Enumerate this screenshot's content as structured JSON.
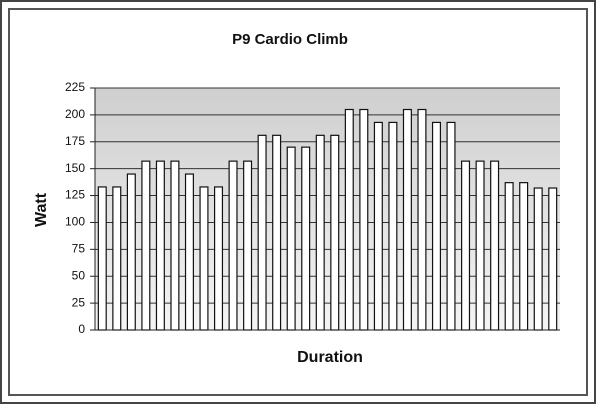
{
  "chart_data": {
    "type": "bar",
    "title": "P9 Cardio Climb",
    "x_label": "Duration",
    "y_label": "Watt",
    "categories": [
      null,
      null,
      null,
      null,
      null,
      null,
      null,
      null,
      null,
      null,
      null,
      null,
      null,
      null,
      null,
      null,
      null,
      null,
      null,
      null,
      null,
      null,
      null,
      null,
      null,
      null,
      null,
      null,
      null,
      null,
      null,
      null
    ],
    "values": [
      133,
      133,
      145,
      157,
      157,
      157,
      145,
      133,
      133,
      157,
      157,
      181,
      181,
      170,
      170,
      181,
      181,
      205,
      205,
      193,
      193,
      205,
      205,
      193,
      193,
      157,
      157,
      157,
      137,
      137,
      132,
      132
    ],
    "color": "#ffffff",
    "ylim": [
      0,
      225
    ],
    "yticks": [
      0,
      25,
      50,
      75,
      100,
      125,
      150,
      175,
      200,
      225
    ],
    "grid": true
  }
}
